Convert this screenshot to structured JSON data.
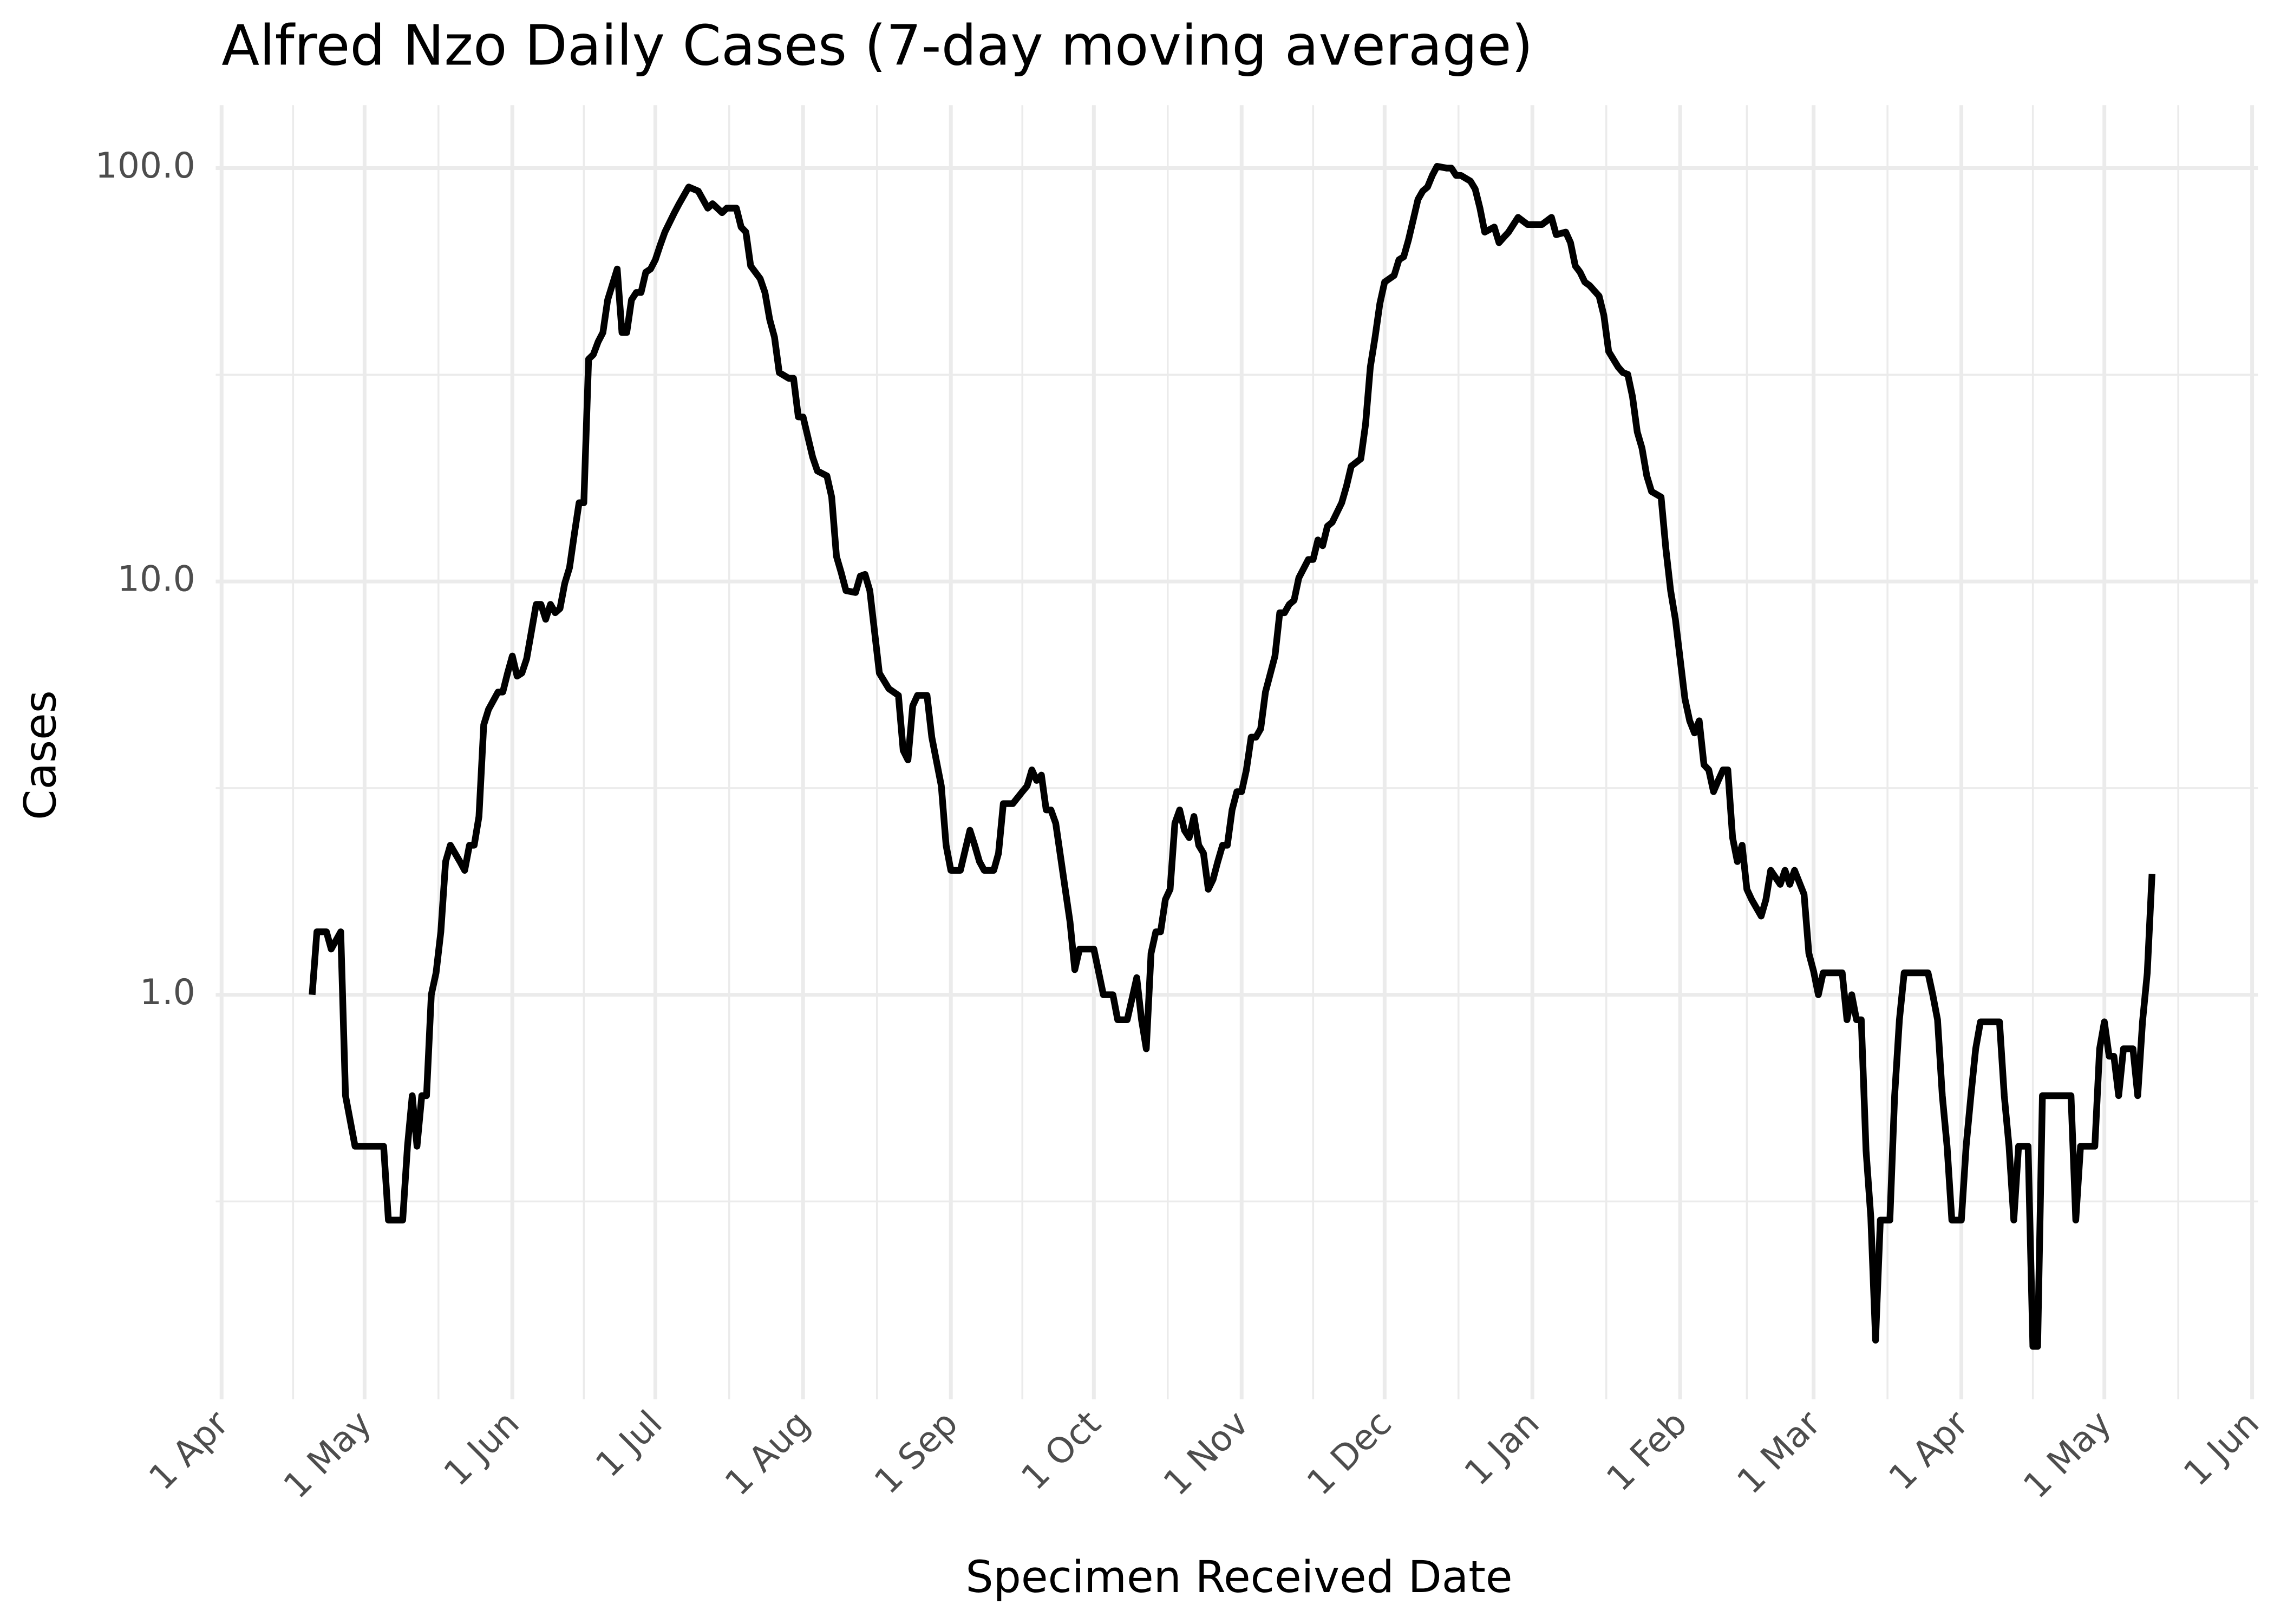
{
  "chart_data": {
    "type": "line",
    "title": "Alfred Nzo Daily Cases (7-day moving average)",
    "x_label": "Specimen Received Date",
    "y_label": "Cases",
    "log_y": true,
    "grid": true,
    "color": "#000000",
    "xlim": [
      0,
      426
    ],
    "xticks": [
      {
        "value": 0,
        "label": "1 Apr"
      },
      {
        "value": 30,
        "label": "1 May"
      },
      {
        "value": 61,
        "label": "1 Jun"
      },
      {
        "value": 91,
        "label": "1 Jul"
      },
      {
        "value": 122,
        "label": "1 Aug"
      },
      {
        "value": 153,
        "label": "1 Sep"
      },
      {
        "value": 183,
        "label": "1 Oct"
      },
      {
        "value": 214,
        "label": "1 Nov"
      },
      {
        "value": 244,
        "label": "1 Dec"
      },
      {
        "value": 275,
        "label": "1 Jan"
      },
      {
        "value": 306,
        "label": "1 Feb"
      },
      {
        "value": 334,
        "label": "1 Mar"
      },
      {
        "value": 365,
        "label": "1 Apr"
      },
      {
        "value": 395,
        "label": "1 May"
      },
      {
        "value": 426,
        "label": "1 Jun"
      }
    ],
    "ylim": [
      0.105,
      142
    ],
    "yticks": [
      {
        "value": 1,
        "label": "1.0"
      },
      {
        "value": 10,
        "label": "10.0"
      },
      {
        "value": 100,
        "label": "100.0"
      }
    ],
    "x": [
      19,
      20,
      22,
      23,
      25,
      26,
      28,
      34,
      35,
      38,
      39,
      40,
      41,
      42,
      43,
      44,
      45,
      46,
      47,
      48,
      50,
      51,
      52,
      53,
      54,
      55,
      56,
      58,
      59,
      60,
      61,
      62,
      63,
      64,
      66,
      67,
      68,
      69,
      70,
      71,
      72,
      73,
      74,
      75,
      76,
      77,
      78,
      79,
      80,
      81,
      83,
      84,
      85,
      86,
      87,
      88,
      89,
      90,
      91,
      92,
      93,
      95,
      96,
      98,
      100,
      102,
      103,
      105,
      106,
      108,
      109,
      110,
      111,
      113,
      114,
      115,
      116,
      117,
      119,
      120,
      121,
      122,
      124,
      125,
      127,
      128,
      129,
      130,
      131,
      133,
      134,
      135,
      136,
      138,
      140,
      142,
      143,
      144,
      145,
      146,
      148,
      149,
      151,
      152,
      153,
      155,
      157,
      158,
      159,
      160,
      162,
      163,
      164,
      166,
      168,
      169,
      170,
      171,
      172,
      173,
      174,
      175,
      177,
      178,
      179,
      180,
      183,
      185,
      187,
      188,
      190,
      192,
      193,
      194,
      195,
      196,
      197,
      198,
      199,
      200,
      201,
      202,
      203,
      204,
      205,
      206,
      207,
      208,
      209,
      210,
      211,
      212,
      213,
      214,
      215,
      216,
      217,
      218,
      219,
      221,
      222,
      223,
      224,
      225,
      226,
      228,
      229,
      230,
      231,
      232,
      233,
      235,
      236,
      237,
      239,
      240,
      241,
      242,
      243,
      244,
      246,
      247,
      248,
      249,
      250,
      251,
      252,
      253,
      254,
      255,
      257,
      258,
      259,
      260,
      262,
      263,
      264,
      265,
      267,
      268,
      269,
      270,
      272,
      274,
      277,
      279,
      280,
      282,
      283,
      284,
      285,
      286,
      287,
      289,
      290,
      291,
      293,
      294,
      295,
      296,
      297,
      298,
      299,
      300,
      302,
      303,
      304,
      305,
      307,
      308,
      309,
      310,
      311,
      312,
      313,
      314,
      315,
      316,
      317,
      318,
      319,
      320,
      321,
      323,
      324,
      325,
      327,
      328,
      329,
      330,
      332,
      333,
      334,
      335,
      336,
      338,
      340,
      341,
      342,
      343,
      344,
      345,
      346,
      347,
      348,
      350,
      351,
      352,
      353,
      358,
      359,
      360,
      361,
      362,
      363,
      365,
      366,
      367,
      368,
      369,
      373,
      374,
      375,
      376,
      377,
      379,
      380,
      381,
      382,
      388,
      389,
      390,
      393,
      394,
      395,
      396,
      397,
      398,
      399,
      401,
      402,
      403,
      404,
      405
    ],
    "values": [
      1,
      1.42,
      1.42,
      1.29,
      1.42,
      0.57,
      0.43,
      0.43,
      0.285,
      0.285,
      0.43,
      0.57,
      0.43,
      0.57,
      0.57,
      1,
      1.13,
      1.42,
      2.1,
      2.3,
      2.1,
      2,
      2.3,
      2.3,
      2.7,
      4.5,
      4.9,
      5.4,
      5.4,
      6,
      6.6,
      5.9,
      6,
      6.5,
      8.8,
      8.8,
      8.1,
      8.8,
      8.4,
      8.6,
      9.9,
      10.8,
      13,
      15.5,
      15.5,
      34.5,
      35.4,
      38,
      40,
      48,
      57,
      40,
      40,
      48,
      50,
      50,
      56,
      57,
      60,
      65,
      70,
      78,
      82,
      90,
      88,
      80,
      82,
      78,
      80,
      80,
      72,
      70,
      58,
      54,
      50,
      43,
      39,
      32,
      31,
      31,
      25,
      25,
      20,
      18.5,
      18,
      16,
      11.5,
      10.5,
      9.5,
      9.4,
      10.3,
      10.4,
      9.5,
      6,
      5.5,
      5.3,
      3.9,
      3.7,
      5,
      5.3,
      5.3,
      4.2,
      3.2,
      2.3,
      2,
      2,
      2.5,
      2.3,
      2.1,
      2,
      2,
      2.2,
      2.9,
      2.9,
      3.1,
      3.2,
      3.5,
      3.3,
      3.4,
      2.8,
      2.8,
      2.6,
      1.8,
      1.5,
      1.15,
      1.29,
      1.29,
      1,
      1,
      0.87,
      0.87,
      1.1,
      0.87,
      0.74,
      1.26,
      1.42,
      1.42,
      1.7,
      1.8,
      2.6,
      2.8,
      2.5,
      2.4,
      2.7,
      2.3,
      2.2,
      1.8,
      1.9,
      2.1,
      2.3,
      2.3,
      2.8,
      3.1,
      3.1,
      3.5,
      4.2,
      4.2,
      4.4,
      5.4,
      6.6,
      8.4,
      8.4,
      8.8,
      9,
      10.2,
      11.3,
      11.3,
      12.6,
      12.2,
      13.6,
      13.9,
      15.5,
      17,
      19,
      19.8,
      24,
      33,
      39,
      47,
      53,
      55,
      60,
      61,
      67,
      75,
      84,
      88,
      90,
      96,
      101,
      100,
      100,
      96,
      96,
      93,
      89,
      80,
      70,
      72,
      66,
      68,
      70,
      76,
      73,
      73,
      76,
      69,
      70,
      66,
      58,
      56,
      53,
      52,
      49,
      44,
      36,
      33,
      32,
      31.7,
      28,
      23,
      21,
      18,
      16.5,
      16,
      12,
      9.5,
      8.1,
      5.2,
      4.6,
      4.3,
      4.6,
      3.6,
      3.5,
      3.1,
      3.3,
      3.5,
      3.5,
      2.4,
      2.1,
      2.3,
      1.8,
      1.7,
      1.55,
      1.7,
      2,
      1.85,
      2,
      1.85,
      2,
      1.75,
      1.26,
      1.14,
      1,
      1.13,
      1.13,
      1.13,
      0.87,
      1,
      0.87,
      0.87,
      0.42,
      0.29,
      0.146,
      0.285,
      0.285,
      0.57,
      0.87,
      1.13,
      1.13,
      1,
      0.87,
      0.57,
      0.43,
      0.285,
      0.285,
      0.43,
      0.57,
      0.74,
      0.86,
      0.86,
      0.57,
      0.43,
      0.285,
      0.43,
      0.43,
      0.141,
      0.141,
      0.57,
      0.57,
      0.285,
      0.43,
      0.43,
      0.74,
      0.86,
      0.71,
      0.71,
      0.57,
      0.74,
      0.74,
      0.57,
      0.86,
      1.13,
      1.96
    ]
  }
}
